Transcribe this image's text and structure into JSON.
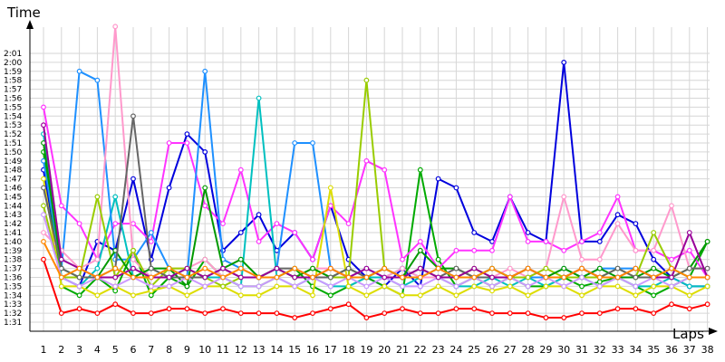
{
  "chart_data": {
    "type": "line",
    "title": "",
    "ylabel": "Time",
    "xlabel": "Laps",
    "grid": true,
    "x": [
      1,
      2,
      3,
      4,
      5,
      6,
      7,
      8,
      9,
      10,
      11,
      12,
      13,
      14,
      15,
      16,
      17,
      18,
      19,
      20,
      21,
      22,
      23,
      24,
      25,
      26,
      27,
      28,
      29,
      30,
      31,
      32,
      33,
      34,
      35,
      36,
      37,
      38
    ],
    "x_ticks": [
      "1",
      "2",
      "3",
      "4",
      "5",
      "6",
      "7",
      "8",
      "9",
      "10",
      "11",
      "12",
      "13",
      "14",
      "15",
      "16",
      "17",
      "18",
      "19",
      "20",
      "21",
      "22",
      "23",
      "24",
      "25",
      "26",
      "27",
      "28",
      "29",
      "30",
      "31",
      "32",
      "33",
      "34",
      "35",
      "36",
      "37",
      "38"
    ],
    "y_ticks": [
      "1:31",
      "1:32",
      "1:33",
      "1:34",
      "1:35",
      "1:36",
      "1:37",
      "1:38",
      "1:39",
      "1:40",
      "1:41",
      "1:42",
      "1:43",
      "1:44",
      "1:45",
      "1:46",
      "1:47",
      "1:48",
      "1:49",
      "1:50",
      "1:51",
      "1:52",
      "1:53",
      "1:54",
      "1:55",
      "1:56",
      "1:57",
      "1:58",
      "1:59",
      "2:00",
      "2:01"
    ],
    "ylim_seconds": [
      90,
      122
    ],
    "series": [
      {
        "color": "#ff0000",
        "values": [
          98,
          92,
          92.5,
          92,
          93,
          92,
          92,
          92.5,
          92.5,
          92,
          92.5,
          92,
          92,
          92,
          91.5,
          92,
          92.5,
          93,
          91.5,
          92,
          92.5,
          92,
          92,
          92.5,
          92.5,
          92,
          92,
          92,
          91.5,
          91.5,
          92,
          92,
          92.5,
          92.5,
          92,
          93,
          92.5,
          93
        ]
      },
      {
        "color": "#0000dd",
        "values": [
          108,
          96,
          95,
          100,
          99,
          107,
          98,
          106,
          112,
          110,
          99,
          101,
          103,
          99,
          101,
          98,
          104,
          98,
          96,
          95,
          97,
          95,
          107,
          106,
          101,
          100,
          105,
          101,
          100,
          120,
          100,
          100,
          103,
          102,
          98,
          96,
          95,
          95
        ]
      },
      {
        "color": "#00aa00",
        "values": [
          110,
          95,
          94,
          96,
          94.5,
          99,
          94,
          96,
          95,
          98,
          96,
          95,
          95,
          96,
          97,
          95,
          94,
          95,
          96,
          95,
          94,
          108,
          98,
          95,
          96,
          95,
          96,
          95,
          95,
          96,
          95,
          95.5,
          96,
          95,
          94,
          95,
          96,
          100
        ]
      },
      {
        "color": "#ff33ff",
        "values": [
          115,
          104,
          102,
          98,
          102,
          102,
          100,
          111,
          111,
          104,
          102,
          108,
          100,
          102,
          101,
          98,
          104,
          102,
          109,
          108,
          98,
          100,
          97,
          99,
          99,
          99,
          105,
          100,
          100,
          99,
          100,
          101,
          105,
          99,
          99,
          98,
          99,
          96
        ]
      },
      {
        "color": "#00c0c0",
        "values": [
          112,
          96,
          95,
          97,
          105,
          96,
          97,
          96,
          97,
          96,
          96,
          95,
          116,
          96,
          95,
          96,
          95,
          95,
          96,
          96,
          95,
          96,
          96,
          95,
          95,
          96,
          95,
          96,
          95,
          96,
          96,
          95,
          96,
          95,
          95,
          96,
          95,
          95
        ]
      },
      {
        "color": "#1e90ff",
        "values": [
          109,
          97,
          119,
          118,
          98,
          98,
          101,
          97,
          96,
          119,
          98,
          97,
          96,
          97,
          111,
          111,
          97,
          96,
          97,
          96,
          97,
          96,
          97,
          96,
          96,
          97,
          96,
          96,
          96,
          97,
          96,
          97,
          97,
          97,
          96,
          97,
          96,
          96
        ]
      },
      {
        "color": "#dddd00",
        "values": [
          107,
          95,
          95,
          94,
          95,
          94,
          94.5,
          95,
          94,
          95,
          95,
          94,
          94,
          95,
          95,
          94,
          106,
          95,
          94,
          95,
          94,
          94,
          95,
          94,
          95,
          94.5,
          95,
          94,
          95,
          95,
          94,
          95,
          95,
          94,
          95,
          95,
          94,
          95
        ]
      },
      {
        "color": "#ff99cc",
        "values": [
          101,
          99,
          97,
          98,
          124,
          98,
          96,
          97,
          97,
          98,
          96,
          97,
          96,
          97,
          96,
          97,
          97,
          96,
          97,
          96,
          97,
          96,
          96,
          97,
          96,
          96,
          97,
          96,
          97,
          105,
          98,
          98,
          102,
          99,
          99,
          104,
          97,
          97
        ]
      },
      {
        "color": "#99cc00",
        "values": [
          104,
          96,
          96,
          105,
          96,
          99,
          95,
          97,
          97,
          96,
          95,
          96,
          96,
          97,
          96,
          97,
          96,
          96,
          118,
          97,
          96,
          97,
          96,
          96,
          97,
          96,
          96,
          96,
          97,
          96,
          96,
          96,
          97,
          96,
          101,
          97,
          96,
          96
        ]
      },
      {
        "color": "#009900",
        "values": [
          111,
          97,
          96,
          96,
          99,
          96,
          97,
          97,
          95,
          106,
          97,
          98,
          96,
          97,
          96,
          97,
          96,
          97,
          96,
          97,
          96,
          99,
          97,
          97,
          96,
          97,
          96,
          97,
          96,
          97,
          96,
          97,
          96,
          96,
          97,
          96,
          97,
          100
        ]
      },
      {
        "color": "#666666",
        "values": [
          106,
          97,
          96,
          96,
          97,
          114,
          97,
          96,
          96,
          96,
          97,
          96,
          96,
          97,
          97,
          96,
          96,
          97,
          96,
          97,
          96,
          97,
          96,
          97,
          96,
          96,
          96,
          97,
          96,
          96,
          97,
          96,
          97,
          96,
          96,
          96,
          97,
          97
        ]
      },
      {
        "color": "#cc99ff",
        "values": [
          103,
          96,
          95,
          96,
          95,
          96,
          95,
          95,
          96,
          95,
          96,
          95,
          95,
          96,
          95,
          96,
          95,
          96,
          95,
          96,
          95,
          95,
          96,
          95,
          96,
          95,
          96,
          95,
          96,
          95,
          96,
          95,
          96,
          95,
          96,
          95,
          96,
          96
        ]
      },
      {
        "color": "#990099",
        "values": [
          113,
          98,
          97,
          96,
          96,
          97,
          96,
          96,
          97,
          96,
          97,
          96,
          96,
          97,
          96,
          96,
          97,
          96,
          97,
          96,
          96,
          97,
          96,
          96,
          97,
          96,
          96,
          97,
          96,
          96,
          97,
          96,
          96,
          97,
          96,
          96,
          101,
          96
        ]
      },
      {
        "color": "#ff8800",
        "values": [
          100,
          96,
          97,
          96,
          97,
          96,
          96,
          97,
          96,
          97,
          96,
          97,
          96,
          96,
          97,
          96,
          97,
          96,
          96,
          97,
          96,
          96,
          97,
          96,
          96,
          97,
          96,
          97,
          96,
          96,
          97,
          96,
          96,
          97,
          96,
          97,
          96,
          96
        ]
      }
    ]
  }
}
